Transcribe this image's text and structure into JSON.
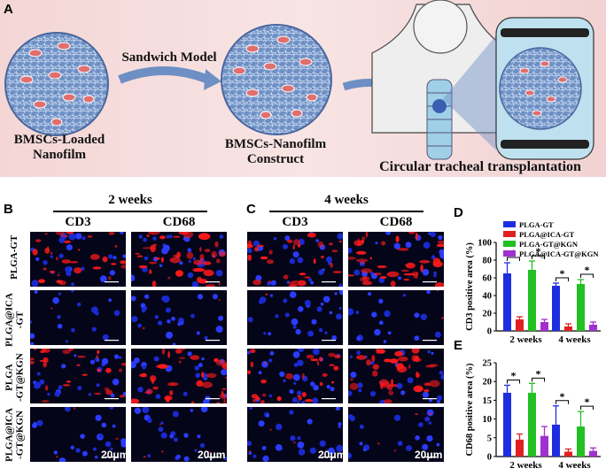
{
  "panels": {
    "a": "A",
    "b": "B",
    "c": "C",
    "d": "D",
    "e": "E"
  },
  "panel_a": {
    "label_nanofilm_1": "BMSCs-Loaded",
    "label_nanofilm_2": "Nanofilm",
    "arrow_label": "Sandwich Model",
    "label_construct_1": "BMSCs-Nanofilm",
    "label_construct_2": "Construct",
    "label_transplant": "Circular tracheal transplantation"
  },
  "panel_b": {
    "time": "2 weeks",
    "col1": "CD3",
    "col2": "CD68"
  },
  "panel_c": {
    "time": "4 weeks",
    "col1": "CD3",
    "col2": "CD68"
  },
  "row_labels": [
    "PLGA-GT",
    "PLGA@ICA\n-GT",
    "PLGA\n-GT@KGN",
    "PLGA@ICA\n-GT@KGN"
  ],
  "scale_bar": "20μm",
  "colors": {
    "plga_gt": "#1f2de0",
    "plga_ica_gt": "#e02020",
    "plga_gt_kgn": "#22c022",
    "plga_ica_gt_kgn": "#a030d0"
  },
  "chart_data": [
    {
      "type": "bar",
      "ylabel": "CD3 positive area (%)",
      "ylim": [
        0,
        100
      ],
      "yticks": [
        "0",
        "20",
        "40",
        "60",
        "80",
        "100"
      ],
      "categories": [
        "2 weeks",
        "4 weeks"
      ],
      "series": [
        {
          "name": "PLGA-GT",
          "values": [
            65,
            51
          ],
          "errors": [
            12,
            3
          ]
        },
        {
          "name": "PLGA@ICA-GT",
          "values": [
            13,
            5
          ],
          "errors": [
            3,
            3
          ]
        },
        {
          "name": "PLGA-GT@KGN",
          "values": [
            69,
            53
          ],
          "errors": [
            10,
            5
          ]
        },
        {
          "name": "PLGA@ICA-GT@KGN",
          "values": [
            10,
            7
          ],
          "errors": [
            3,
            3
          ]
        }
      ],
      "significance": [
        "*",
        "*",
        "*",
        "*"
      ],
      "legend_position": "top"
    },
    {
      "type": "bar",
      "ylabel": "CD68 positive area (%)",
      "ylim": [
        0,
        25
      ],
      "yticks": [
        "0",
        "5",
        "10",
        "15",
        "20",
        "25"
      ],
      "categories": [
        "2 weeks",
        "4 weeks"
      ],
      "series": [
        {
          "name": "PLGA-GT",
          "values": [
            17,
            8.5
          ],
          "errors": [
            2,
            5
          ]
        },
        {
          "name": "PLGA@ICA-GT",
          "values": [
            4.5,
            1.3
          ],
          "errors": [
            1.5,
            0.7
          ]
        },
        {
          "name": "PLGA-GT@KGN",
          "values": [
            17,
            8
          ],
          "errors": [
            2.5,
            4
          ]
        },
        {
          "name": "PLGA@ICA-GT@KGN",
          "values": [
            5.5,
            1.5
          ],
          "errors": [
            2.5,
            0.8
          ]
        }
      ],
      "significance": [
        "*",
        "*",
        "*",
        "*"
      ]
    }
  ]
}
